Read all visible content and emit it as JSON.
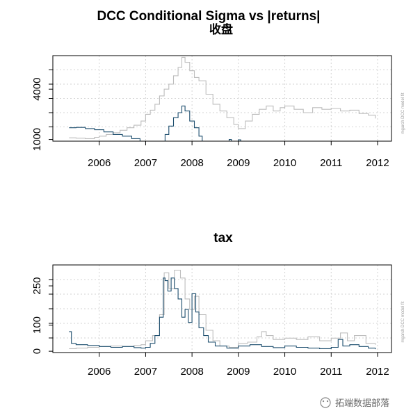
{
  "chart_data": [
    {
      "type": "line",
      "title": "DCC Conditional Sigma vs |returns|",
      "subtitle": "收盘",
      "side_note": "mgarch    DCC model fit",
      "x_ticks": [
        2006,
        2007,
        2008,
        2009,
        2010,
        2011,
        2012
      ],
      "y_ticks": [
        1000,
        4000
      ],
      "xlim": [
        2005.0,
        2012.3
      ],
      "ylim": [
        900,
        6000
      ],
      "grid": true,
      "series": [
        {
          "color": "#bdbdbd",
          "x": [
            2005.35,
            2005.5,
            2005.7,
            2005.9,
            2006.0,
            2006.15,
            2006.3,
            2006.45,
            2006.6,
            2006.75,
            2006.9,
            2007.0,
            2007.1,
            2007.2,
            2007.3,
            2007.4,
            2007.5,
            2007.6,
            2007.7,
            2007.78,
            2007.85,
            2007.95,
            2008.05,
            2008.15,
            2008.3,
            2008.45,
            2008.6,
            2008.75,
            2008.9,
            2009.0,
            2009.15,
            2009.3,
            2009.45,
            2009.6,
            2009.75,
            2009.9,
            2010.0,
            2010.2,
            2010.4,
            2010.6,
            2010.8,
            2011.0,
            2011.2,
            2011.4,
            2011.6,
            2011.8,
            2011.95
          ],
          "values": [
            1100,
            1080,
            1050,
            1130,
            1200,
            1300,
            1400,
            1550,
            1700,
            1850,
            2100,
            2500,
            2750,
            3100,
            3600,
            4000,
            4300,
            4800,
            5300,
            5900,
            5600,
            5100,
            4700,
            4500,
            3700,
            3100,
            2700,
            2300,
            1900,
            1650,
            2100,
            2500,
            2800,
            3000,
            2700,
            2900,
            3000,
            2800,
            2600,
            2900,
            2800,
            2850,
            2700,
            2750,
            2550,
            2450,
            2250
          ]
        },
        {
          "color": "#1d4e6e",
          "segments": [
            {
              "x": [
                2005.35,
                2005.5,
                2005.7,
                2005.9,
                2006.1,
                2006.3,
                2006.5,
                2006.7,
                2006.88
              ],
              "values": [
                1700,
                1720,
                1650,
                1580,
                1450,
                1300,
                1200,
                1050,
                900
              ]
            },
            {
              "x": [
                2007.3,
                2007.42,
                2007.5,
                2007.6,
                2007.7,
                2007.78,
                2007.85,
                2007.95,
                2008.05,
                2008.15,
                2008.22
              ],
              "values": [
                900,
                1300,
                1800,
                2300,
                2600,
                3000,
                2700,
                2100,
                1700,
                1200,
                900
              ]
            },
            {
              "x": [
                2008.75,
                2008.8,
                2008.85
              ],
              "values": [
                900,
                1000,
                900
              ]
            },
            {
              "x": [
                2008.95,
                2009.0,
                2009.05
              ],
              "values": [
                900,
                980,
                900
              ]
            }
          ]
        }
      ]
    },
    {
      "type": "line",
      "title": "tax",
      "side_note": "mgarch    DCC model fit",
      "x_ticks": [
        2006,
        2007,
        2008,
        2009,
        2010,
        2011,
        2012
      ],
      "y_ticks": [
        0,
        100,
        250
      ],
      "xlim": [
        2005.0,
        2012.3
      ],
      "ylim": [
        -5,
        330
      ],
      "grid": true,
      "series": [
        {
          "color": "#bdbdbd",
          "x": [
            2005.35,
            2005.5,
            2005.75,
            2006.0,
            2006.25,
            2006.5,
            2006.75,
            2006.9,
            2007.0,
            2007.15,
            2007.3,
            2007.4,
            2007.5,
            2007.62,
            2007.75,
            2007.85,
            2007.95,
            2008.05,
            2008.15,
            2008.3,
            2008.45,
            2008.6,
            2008.8,
            2009.0,
            2009.2,
            2009.4,
            2009.5,
            2009.6,
            2009.75,
            2010.0,
            2010.25,
            2010.5,
            2010.75,
            2011.0,
            2011.2,
            2011.35,
            2011.5,
            2011.75,
            2011.95
          ],
          "values": [
            10,
            12,
            15,
            18,
            20,
            18,
            22,
            25,
            40,
            60,
            140,
            300,
            240,
            310,
            280,
            200,
            160,
            210,
            140,
            80,
            40,
            20,
            15,
            30,
            35,
            55,
            75,
            60,
            45,
            50,
            45,
            55,
            40,
            50,
            70,
            40,
            60,
            30,
            25
          ]
        },
        {
          "color": "#1d4e6e",
          "x": [
            2005.35,
            2005.4,
            2005.5,
            2005.75,
            2006.0,
            2006.25,
            2006.5,
            2006.75,
            2006.9,
            2007.0,
            2007.1,
            2007.2,
            2007.3,
            2007.38,
            2007.42,
            2007.48,
            2007.55,
            2007.62,
            2007.7,
            2007.78,
            2007.85,
            2007.92,
            2008.0,
            2008.08,
            2008.15,
            2008.25,
            2008.35,
            2008.5,
            2008.75,
            2009.0,
            2009.25,
            2009.5,
            2009.75,
            2010.0,
            2010.25,
            2010.5,
            2010.75,
            2011.0,
            2011.15,
            2011.25,
            2011.4,
            2011.6,
            2011.8,
            2011.95
          ],
          "values": [
            75,
            30,
            25,
            22,
            18,
            15,
            18,
            14,
            12,
            15,
            30,
            60,
            130,
            280,
            270,
            230,
            280,
            240,
            200,
            130,
            160,
            110,
            220,
            150,
            90,
            60,
            35,
            20,
            12,
            20,
            25,
            18,
            14,
            20,
            15,
            12,
            10,
            15,
            45,
            20,
            25,
            18,
            12,
            8
          ]
        }
      ]
    }
  ],
  "watermark": "拓端数据部落"
}
